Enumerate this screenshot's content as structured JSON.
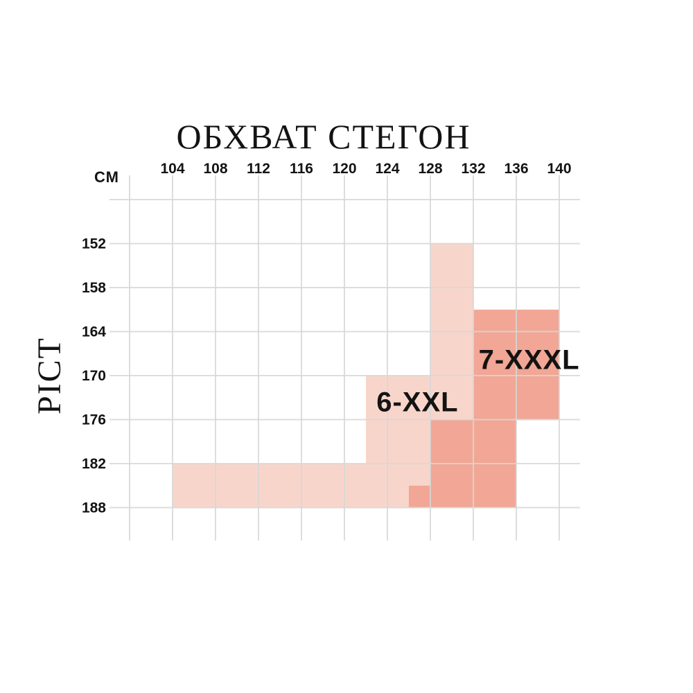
{
  "header": {
    "title": "ОБХВАТ СТЕГОН"
  },
  "axes": {
    "y_title": "РІСТ",
    "unit_label": "СМ"
  },
  "colors": {
    "background": "#ffffff",
    "grid_line": "#d7d7d7",
    "text": "#131313",
    "light_region": "#f8d5ca",
    "dark_region": "#f2a695"
  },
  "chart_data": {
    "type": "heatmap",
    "title": "ОБХВАТ СТЕГОН",
    "xlabel": "ОБХВАТ СТЕГОН (СМ)",
    "ylabel": "РІСТ (СМ)",
    "x_ticks": [
      104,
      108,
      112,
      116,
      120,
      124,
      128,
      132,
      136,
      140
    ],
    "y_ticks": [
      152,
      158,
      164,
      170,
      176,
      182,
      188
    ],
    "x_range": [
      100,
      144
    ],
    "y_range": [
      146,
      191
    ],
    "grid": true,
    "series": [
      {
        "name": "6-XXL",
        "color": "#f8d5ca",
        "label_pos": {
          "hips": 126.8,
          "height": 173.7
        },
        "rects": [
          {
            "hips": [
              128,
              132
            ],
            "height": [
              152,
              176
            ]
          },
          {
            "hips": [
              122,
              128
            ],
            "height": [
              170,
              182
            ]
          },
          {
            "hips": [
              104,
              128
            ],
            "height": [
              182,
              188
            ]
          }
        ]
      },
      {
        "name": "7-XXXL",
        "color": "#f2a695",
        "label_pos": {
          "hips": 137.2,
          "height": 167.9
        },
        "rects": [
          {
            "hips": [
              132,
              140
            ],
            "height": [
              161,
              176
            ]
          },
          {
            "hips": [
              128,
              136
            ],
            "height": [
              176,
              188
            ]
          },
          {
            "hips": [
              126,
              128
            ],
            "height": [
              185,
              188
            ]
          }
        ]
      }
    ]
  }
}
